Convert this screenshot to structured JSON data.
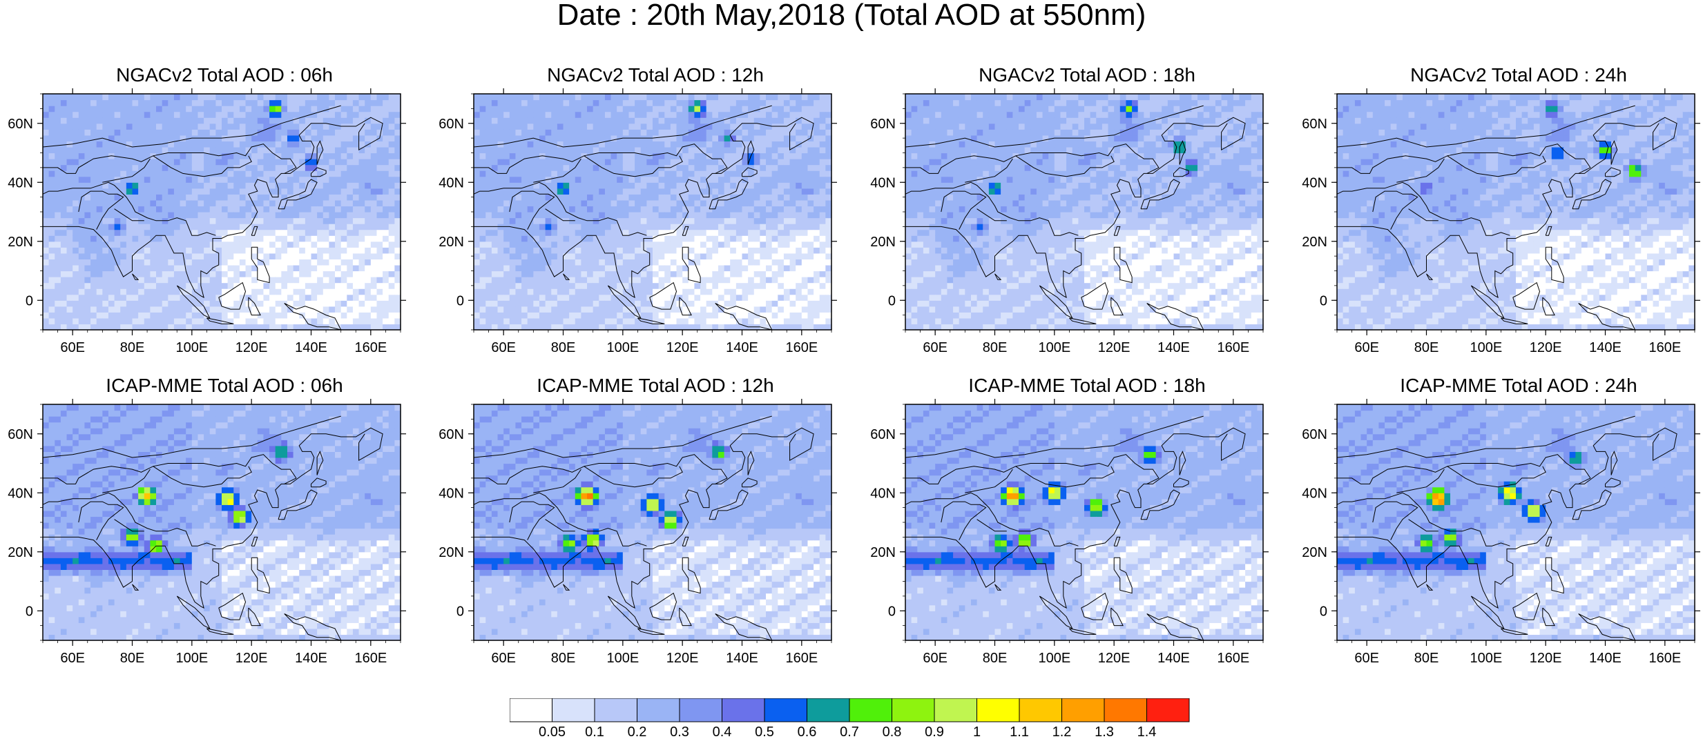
{
  "title": "Date : 20th May,2018 (Total AOD at 550nm)",
  "colors": {
    "scale": [
      "#ffffff",
      "#d8e2fb",
      "#b8c8f8",
      "#9ab4f5",
      "#7f96f1",
      "#6a72ea",
      "#0a60f0",
      "#0e9c9c",
      "#50f00a",
      "#8ef30f",
      "#c0f550",
      "#ffff00",
      "#ffc800",
      "#ff9f00",
      "#ff7800",
      "#ff2010"
    ],
    "land_outline": "#000000"
  },
  "chart_data": [
    {
      "type": "heatmap",
      "title": "NGACv2 Total AOD : 06h",
      "model": "NGACv2",
      "hour": "06h",
      "x_ticks": [
        "60E",
        "80E",
        "100E",
        "120E",
        "140E",
        "160E"
      ],
      "y_ticks": [
        "60N",
        "40N",
        "20N",
        "0"
      ],
      "xlim": [
        50,
        170
      ],
      "ylim": [
        -10,
        70
      ],
      "hotspots": [
        {
          "lon": 80,
          "lat": 38,
          "aod": 0.7
        },
        {
          "lon": 128,
          "lat": 65,
          "aod": 0.9
        },
        {
          "lon": 134,
          "lat": 55,
          "aod": 0.6
        },
        {
          "lon": 140,
          "lat": 47,
          "aod": 0.6
        },
        {
          "lon": 75,
          "lat": 25,
          "aod": 0.5
        }
      ]
    },
    {
      "type": "heatmap",
      "title": "NGACv2 Total AOD : 12h",
      "model": "NGACv2",
      "hour": "12h",
      "x_ticks": [
        "60E",
        "80E",
        "100E",
        "120E",
        "140E",
        "160E"
      ],
      "y_ticks": [
        "60N",
        "40N",
        "20N",
        "0"
      ],
      "xlim": [
        50,
        170
      ],
      "ylim": [
        -10,
        70
      ],
      "hotspots": [
        {
          "lon": 80,
          "lat": 38,
          "aod": 0.7
        },
        {
          "lon": 125,
          "lat": 65,
          "aod": 0.9
        },
        {
          "lon": 135,
          "lat": 55,
          "aod": 0.6
        },
        {
          "lon": 143,
          "lat": 48,
          "aod": 0.6
        },
        {
          "lon": 75,
          "lat": 25,
          "aod": 0.5
        }
      ]
    },
    {
      "type": "heatmap",
      "title": "NGACv2 Total AOD : 18h",
      "model": "NGACv2",
      "hour": "18h",
      "x_ticks": [
        "60E",
        "80E",
        "100E",
        "120E",
        "140E",
        "160E"
      ],
      "y_ticks": [
        "60N",
        "40N",
        "20N",
        "0"
      ],
      "xlim": [
        50,
        170
      ],
      "ylim": [
        -10,
        70
      ],
      "hotspots": [
        {
          "lon": 80,
          "lat": 38,
          "aod": 0.7
        },
        {
          "lon": 125,
          "lat": 65,
          "aod": 0.8
        },
        {
          "lon": 142,
          "lat": 52,
          "aod": 0.8
        },
        {
          "lon": 146,
          "lat": 45,
          "aod": 0.7
        },
        {
          "lon": 75,
          "lat": 25,
          "aod": 0.5
        }
      ]
    },
    {
      "type": "heatmap",
      "title": "NGACv2 Total AOD : 24h",
      "model": "NGACv2",
      "hour": "24h",
      "x_ticks": [
        "60E",
        "80E",
        "100E",
        "120E",
        "140E",
        "160E"
      ],
      "y_ticks": [
        "60N",
        "40N",
        "20N",
        "0"
      ],
      "xlim": [
        50,
        170
      ],
      "ylim": [
        -10,
        70
      ],
      "hotspots": [
        {
          "lon": 122,
          "lat": 65,
          "aod": 0.7
        },
        {
          "lon": 140,
          "lat": 51,
          "aod": 0.9
        },
        {
          "lon": 150,
          "lat": 44,
          "aod": 0.9
        },
        {
          "lon": 124,
          "lat": 50,
          "aod": 0.7
        },
        {
          "lon": 80,
          "lat": 38,
          "aod": 0.5
        }
      ]
    },
    {
      "type": "heatmap",
      "title": "ICAP-MME Total AOD : 06h",
      "model": "ICAP-MME",
      "hour": "06h",
      "x_ticks": [
        "60E",
        "80E",
        "100E",
        "120E",
        "140E",
        "160E"
      ],
      "y_ticks": [
        "60N",
        "40N",
        "20N",
        "0"
      ],
      "xlim": [
        50,
        170
      ],
      "ylim": [
        -10,
        70
      ],
      "hotspots": [
        {
          "lon": 85,
          "lat": 39,
          "aod": 1.2
        },
        {
          "lon": 112,
          "lat": 38,
          "aod": 1.1
        },
        {
          "lon": 116,
          "lat": 32,
          "aod": 1.0
        },
        {
          "lon": 80,
          "lat": 25,
          "aod": 0.9
        },
        {
          "lon": 88,
          "lat": 22,
          "aod": 0.9
        },
        {
          "lon": 130,
          "lat": 54,
          "aod": 0.8
        }
      ]
    },
    {
      "type": "heatmap",
      "title": "ICAP-MME Total AOD : 12h",
      "model": "ICAP-MME",
      "hour": "12h",
      "x_ticks": [
        "60E",
        "80E",
        "100E",
        "120E",
        "140E",
        "160E"
      ],
      "y_ticks": [
        "60N",
        "40N",
        "20N",
        "0"
      ],
      "xlim": [
        50,
        170
      ],
      "ylim": [
        -10,
        70
      ],
      "hotspots": [
        {
          "lon": 88,
          "lat": 39,
          "aod": 1.4
        },
        {
          "lon": 110,
          "lat": 36,
          "aod": 1.1
        },
        {
          "lon": 116,
          "lat": 31,
          "aod": 1.0
        },
        {
          "lon": 82,
          "lat": 23,
          "aod": 0.9
        },
        {
          "lon": 90,
          "lat": 24,
          "aod": 1.0
        },
        {
          "lon": 132,
          "lat": 54,
          "aod": 0.8
        }
      ]
    },
    {
      "type": "heatmap",
      "title": "ICAP-MME Total AOD : 18h",
      "model": "ICAP-MME",
      "hour": "18h",
      "x_ticks": [
        "60E",
        "80E",
        "100E",
        "120E",
        "140E",
        "160E"
      ],
      "y_ticks": [
        "60N",
        "40N",
        "20N",
        "0"
      ],
      "xlim": [
        50,
        170
      ],
      "ylim": [
        -10,
        70
      ],
      "hotspots": [
        {
          "lon": 86,
          "lat": 39,
          "aod": 1.4
        },
        {
          "lon": 100,
          "lat": 40,
          "aod": 1.1
        },
        {
          "lon": 114,
          "lat": 35,
          "aod": 1.0
        },
        {
          "lon": 82,
          "lat": 23,
          "aod": 0.9
        },
        {
          "lon": 90,
          "lat": 24,
          "aod": 0.9
        },
        {
          "lon": 132,
          "lat": 53,
          "aod": 0.8
        }
      ]
    },
    {
      "type": "heatmap",
      "title": "ICAP-MME Total AOD : 24h",
      "model": "ICAP-MME",
      "hour": "24h",
      "x_ticks": [
        "60E",
        "80E",
        "100E",
        "120E",
        "140E",
        "160E"
      ],
      "y_ticks": [
        "60N",
        "40N",
        "20N",
        "0"
      ],
      "xlim": [
        50,
        170
      ],
      "ylim": [
        -10,
        70
      ],
      "hotspots": [
        {
          "lon": 84,
          "lat": 38,
          "aod": 1.4
        },
        {
          "lon": 108,
          "lat": 40,
          "aod": 1.2
        },
        {
          "lon": 116,
          "lat": 34,
          "aod": 1.1
        },
        {
          "lon": 80,
          "lat": 23,
          "aod": 0.9
        },
        {
          "lon": 88,
          "lat": 25,
          "aod": 0.9
        },
        {
          "lon": 130,
          "lat": 52,
          "aod": 0.7
        }
      ]
    }
  ],
  "colorbar": {
    "labels": [
      "0.05",
      "0.1",
      "0.2",
      "0.3",
      "0.4",
      "0.5",
      "0.6",
      "0.7",
      "0.8",
      "0.9",
      "1",
      "1.1",
      "1.2",
      "1.3",
      "1.4"
    ],
    "levels": [
      0.05,
      0.1,
      0.2,
      0.3,
      0.4,
      0.5,
      0.6,
      0.7,
      0.8,
      0.9,
      1,
      1.1,
      1.2,
      1.3,
      1.4
    ]
  }
}
